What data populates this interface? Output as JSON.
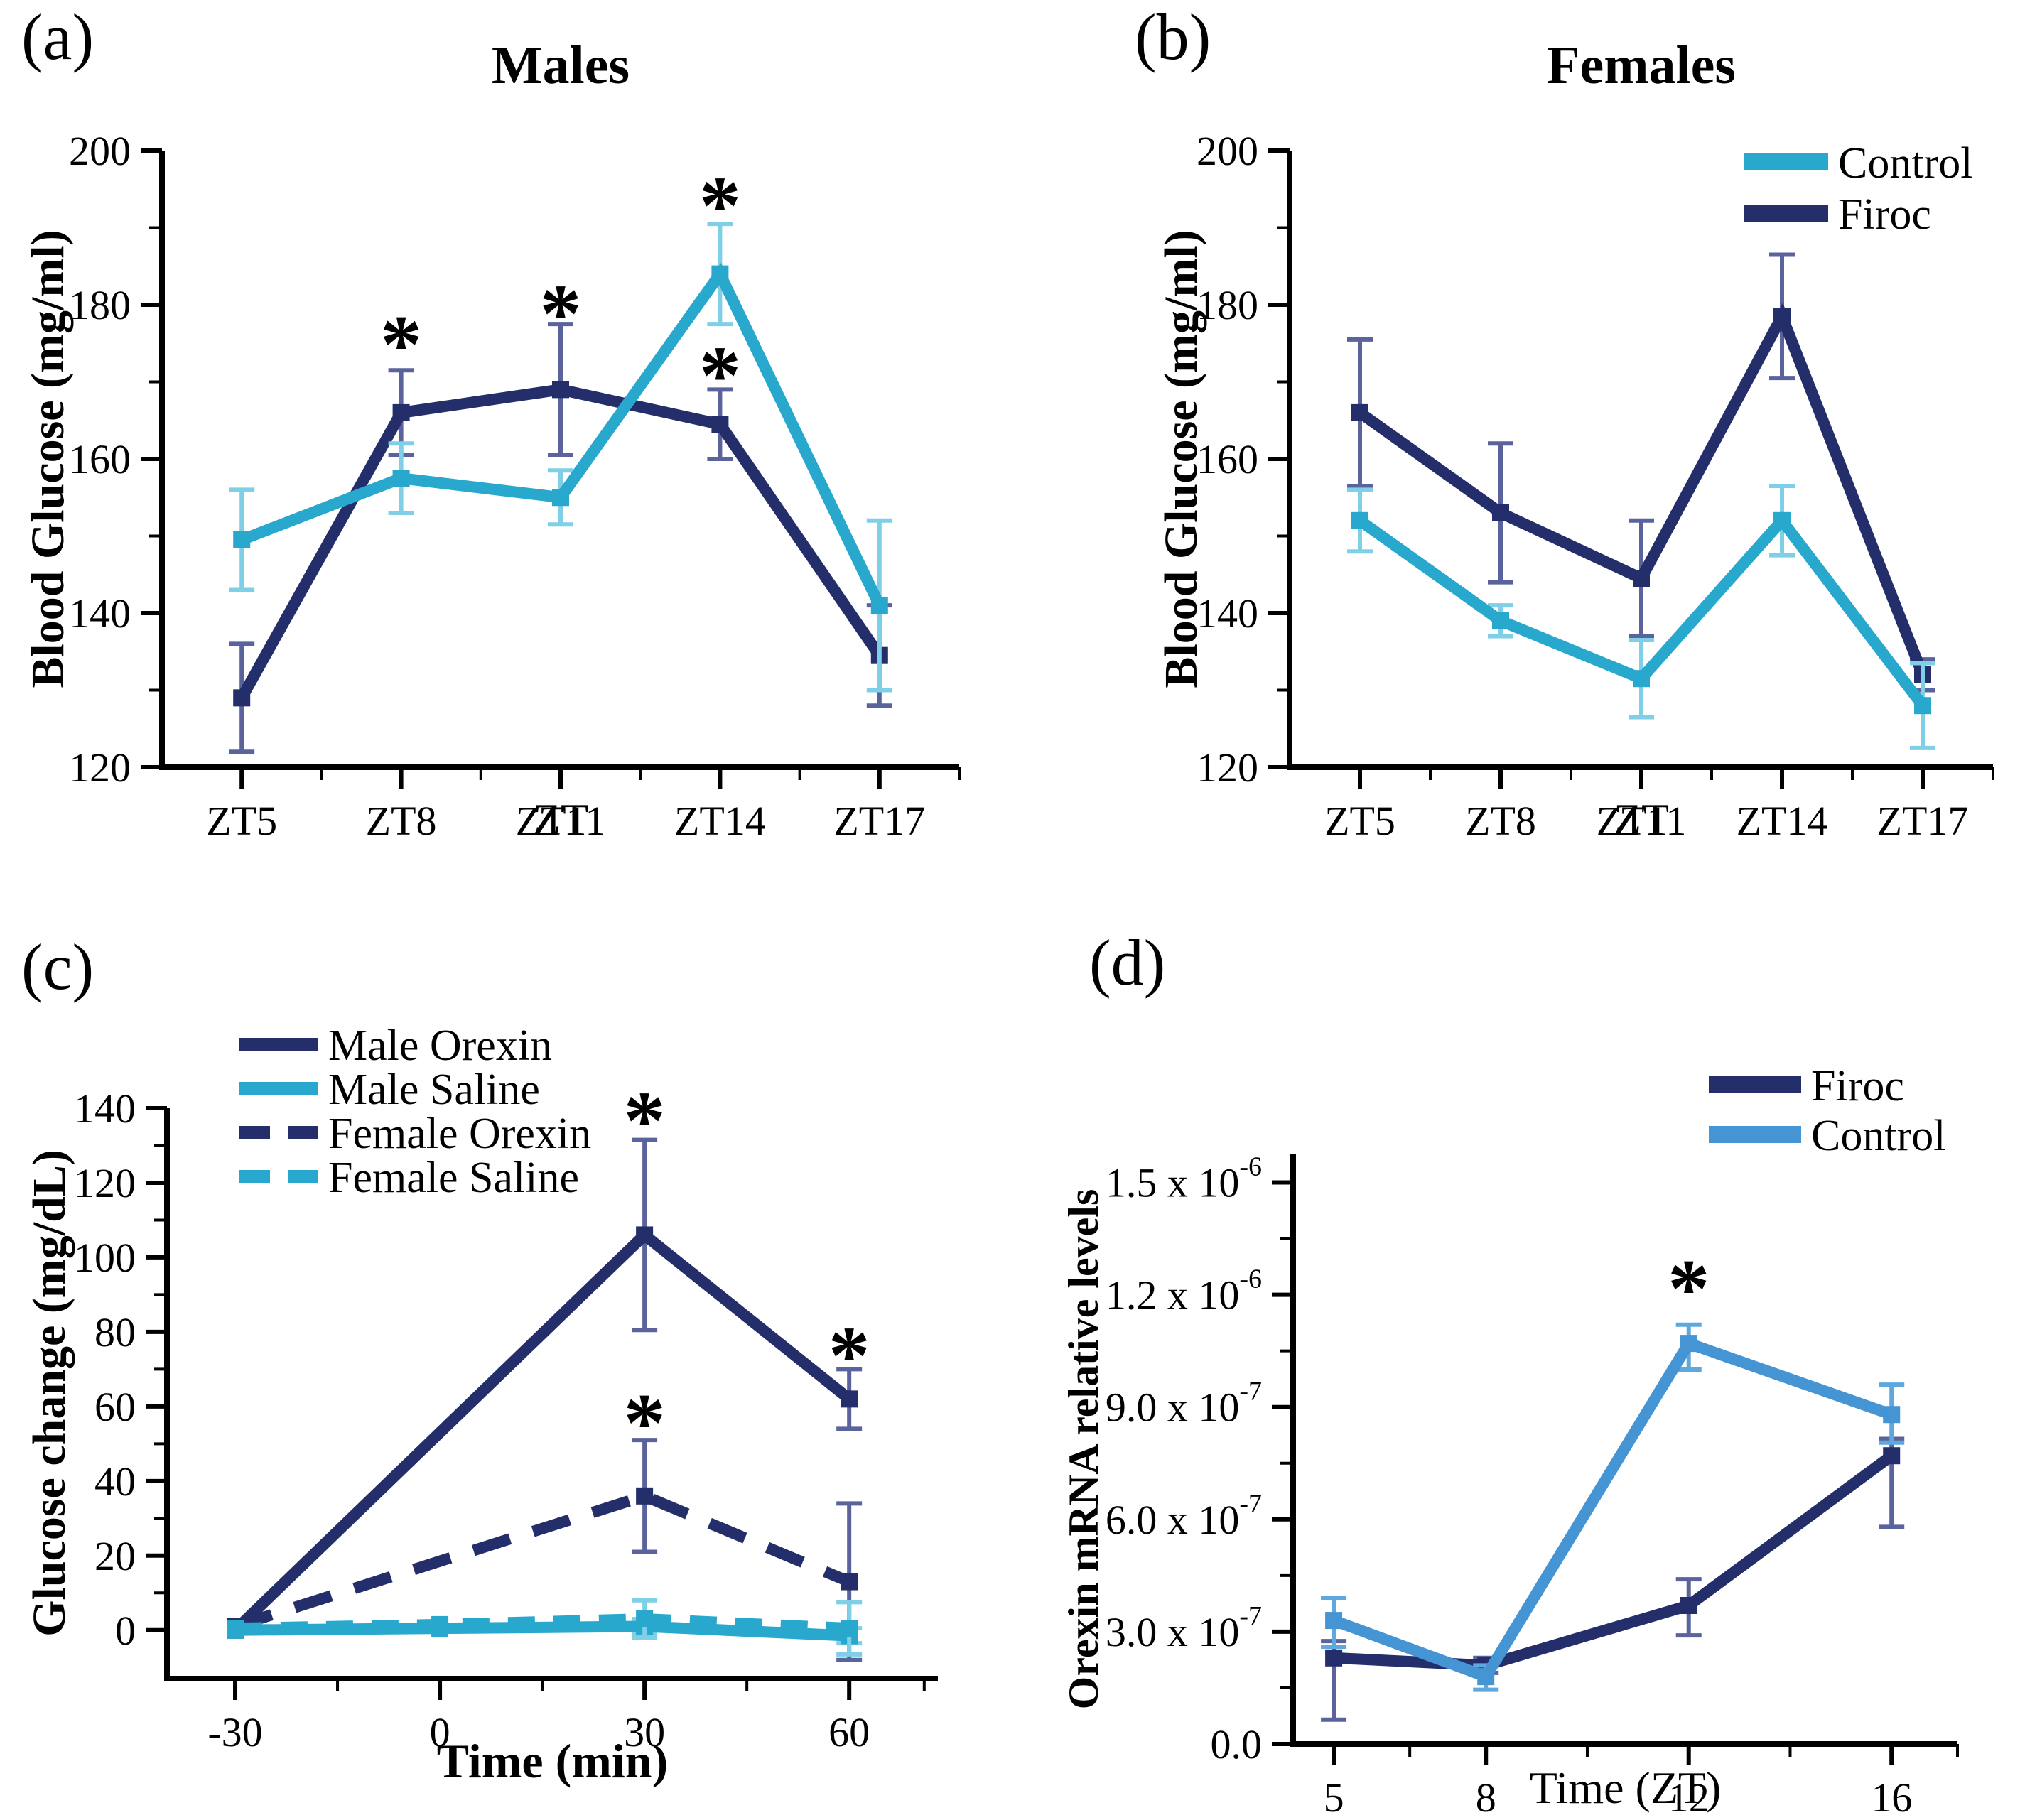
{
  "figure": {
    "background": "#ffffff",
    "sig_marker": "*"
  },
  "colors": {
    "navy": "#242E6B",
    "cyan": "#29A8CE",
    "sky_blue": "#4594D4",
    "navy_error": "#5A639B",
    "cyan_error": "#7FCFE6",
    "sky_error": "#5FA8DE",
    "axis": "#000000"
  },
  "chart_data": [
    {
      "panel_label": "(a)",
      "type": "line",
      "title": "Males",
      "xlabel": "ZT",
      "ylabel": "Blood Glucose (mg/ml)",
      "xlim": [
        3.5,
        18.5
      ],
      "ylim": [
        120,
        200
      ],
      "x_ticks": [
        {
          "v": 5,
          "label": "ZT5"
        },
        {
          "v": 8,
          "label": "ZT8"
        },
        {
          "v": 11,
          "label": "ZT11"
        },
        {
          "v": 14,
          "label": "ZT14"
        },
        {
          "v": 17,
          "label": "ZT17"
        }
      ],
      "x_minor": [
        6.5,
        9.5,
        12.5,
        15.5,
        18.5
      ],
      "y_ticks": [
        {
          "v": 120,
          "label": "120"
        },
        {
          "v": 140,
          "label": "140"
        },
        {
          "v": 160,
          "label": "160"
        },
        {
          "v": 180,
          "label": "180"
        },
        {
          "v": 200,
          "label": "200"
        }
      ],
      "y_minor": [
        130,
        150,
        170,
        190
      ],
      "series": [
        {
          "name": "Firoc",
          "color": "#242E6B",
          "err_color": "#5A639B",
          "dash": null,
          "x": [
            5,
            8,
            11,
            14,
            17
          ],
          "y": [
            129,
            166,
            169,
            164.5,
            134.5
          ],
          "err": [
            7,
            5.5,
            8.5,
            4.5,
            6.5
          ]
        },
        {
          "name": "Control",
          "color": "#29A8CE",
          "err_color": "#7FCFE6",
          "dash": null,
          "x": [
            5,
            8,
            11,
            14,
            17
          ],
          "y": [
            149.5,
            157.5,
            155,
            184,
            141
          ],
          "err": [
            6.5,
            4.5,
            3.5,
            6.5,
            11
          ]
        }
      ],
      "annotations": [
        {
          "x": 8,
          "y": 176,
          "text": "*"
        },
        {
          "x": 11,
          "y": 180,
          "text": "*"
        },
        {
          "x": 14,
          "y": 194,
          "text": "*"
        },
        {
          "x": 14,
          "y": 172,
          "text": "*"
        }
      ],
      "legend": null
    },
    {
      "panel_label": "(b)",
      "type": "line",
      "title": "Females",
      "xlabel": "ZT",
      "ylabel": "Blood Glucose (mg/ml)",
      "xlim": [
        3.5,
        18.5
      ],
      "ylim": [
        120,
        200
      ],
      "x_ticks": [
        {
          "v": 5,
          "label": "ZT5"
        },
        {
          "v": 8,
          "label": "ZT8"
        },
        {
          "v": 11,
          "label": "ZT11"
        },
        {
          "v": 14,
          "label": "ZT14"
        },
        {
          "v": 17,
          "label": "ZT17"
        }
      ],
      "x_minor": [
        6.5,
        9.5,
        12.5,
        15.5,
        18.5
      ],
      "y_ticks": [
        {
          "v": 120,
          "label": "120"
        },
        {
          "v": 140,
          "label": "140"
        },
        {
          "v": 160,
          "label": "160"
        },
        {
          "v": 180,
          "label": "180"
        },
        {
          "v": 200,
          "label": "200"
        }
      ],
      "y_minor": [
        130,
        150,
        170,
        190
      ],
      "series": [
        {
          "name": "Firoc",
          "color": "#242E6B",
          "err_color": "#5A639B",
          "dash": null,
          "x": [
            5,
            8,
            11,
            14,
            17
          ],
          "y": [
            166,
            153,
            144.5,
            178.5,
            132
          ],
          "err": [
            9.5,
            9,
            7.5,
            8,
            2
          ]
        },
        {
          "name": "Control",
          "color": "#29A8CE",
          "err_color": "#7FCFE6",
          "dash": null,
          "x": [
            5,
            8,
            11,
            14,
            17
          ],
          "y": [
            152,
            139,
            131.5,
            152,
            128
          ],
          "err": [
            4,
            2,
            5,
            4.5,
            5.5
          ]
        }
      ],
      "annotations": [],
      "legend": {
        "items": [
          {
            "label": "Control",
            "series": 1
          },
          {
            "label": "Firoc",
            "series": 0
          }
        ]
      }
    },
    {
      "panel_label": "(c)",
      "type": "line",
      "title": "",
      "xlabel": "Time (min)",
      "ylabel": "Glucose change (mg/dL)",
      "xlim": [
        -40,
        73
      ],
      "ylim": [
        -13,
        140
      ],
      "x_ticks": [
        {
          "v": -30,
          "label": "-30"
        },
        {
          "v": 0,
          "label": "0"
        },
        {
          "v": 30,
          "label": "30"
        },
        {
          "v": 60,
          "label": "60"
        }
      ],
      "x_minor": [
        -15,
        15,
        45,
        71
      ],
      "y_ticks": [
        {
          "v": 0,
          "label": "0"
        },
        {
          "v": 20,
          "label": "20"
        },
        {
          "v": 40,
          "label": "40"
        },
        {
          "v": 60,
          "label": "60"
        },
        {
          "v": 80,
          "label": "80"
        },
        {
          "v": 100,
          "label": "100"
        },
        {
          "v": 120,
          "label": "120"
        },
        {
          "v": 140,
          "label": "140"
        }
      ],
      "y_minor": [
        10,
        30,
        50,
        70,
        90,
        110,
        130
      ],
      "series": [
        {
          "name": "Male Orexin",
          "color": "#242E6B",
          "err_color": "#5A639B",
          "dash": null,
          "x": [
            -30,
            30,
            60
          ],
          "y": [
            0,
            106,
            62
          ],
          "err": [
            0,
            25.5,
            8
          ]
        },
        {
          "name": "Female Orexin",
          "color": "#242E6B",
          "err_color": "#5A639B",
          "dash": "54 34",
          "x": [
            -30,
            30,
            60
          ],
          "y": [
            1,
            36,
            13
          ],
          "err": [
            0,
            15,
            21
          ]
        },
        {
          "name": "Male Saline",
          "color": "#29A8CE",
          "err_color": "#7FCFE6",
          "dash": null,
          "x": [
            -30,
            0,
            30,
            60
          ],
          "y": [
            0,
            0.5,
            1,
            -1.5
          ],
          "err": [
            0,
            0,
            2,
            2
          ]
        },
        {
          "name": "Female Saline",
          "color": "#29A8CE",
          "err_color": "#7FCFE6",
          "dash": "38 26",
          "x": [
            -30,
            0,
            30,
            60
          ],
          "y": [
            0.5,
            1.5,
            3,
            0.5
          ],
          "err": [
            0,
            0,
            5,
            7
          ]
        }
      ],
      "annotations": [
        {
          "x": 30,
          "y": 139,
          "text": "*"
        },
        {
          "x": 30,
          "y": 58,
          "text": "*"
        },
        {
          "x": 60,
          "y": 76,
          "text": "*"
        }
      ],
      "legend": {
        "items": [
          {
            "label": "Male Orexin",
            "series": 0
          },
          {
            "label": "Male Saline",
            "series": 2
          },
          {
            "label": "Female Orexin",
            "series": 1
          },
          {
            "label": "Female Saline",
            "series": 3
          }
        ]
      }
    },
    {
      "panel_label": "(d)",
      "type": "line",
      "title": "",
      "xlabel": "Time  (ZT)",
      "ylabel": "Orexin mRNA relative levels",
      "xlim": [
        4.2,
        17.3
      ],
      "ylim": [
        0,
        1.575e-06
      ],
      "x_ticks": [
        {
          "v": 5,
          "label": "5"
        },
        {
          "v": 8,
          "label": "8"
        },
        {
          "v": 12,
          "label": "12"
        },
        {
          "v": 16,
          "label": "16"
        }
      ],
      "x_minor": [
        6.5,
        10,
        14,
        17.3
      ],
      "y_ticks": [
        {
          "v": 0,
          "label": "0.0"
        },
        {
          "v": 3e-07,
          "label": "3.0 x 10",
          "sup": "-7"
        },
        {
          "v": 6e-07,
          "label": "6.0 x 10",
          "sup": "-7"
        },
        {
          "v": 9e-07,
          "label": "9.0 x 10",
          "sup": "-7"
        },
        {
          "v": 1.2e-06,
          "label": "1.2 x 10",
          "sup": "-6"
        },
        {
          "v": 1.5e-06,
          "label": "1.5 x 10",
          "sup": "-6"
        }
      ],
      "y_minor": [
        1.5e-07,
        4.5e-07,
        7.5e-07,
        1.05e-06,
        1.35e-06
      ],
      "series": [
        {
          "name": "Firoc",
          "color": "#242E6B",
          "err_color": "#5A639B",
          "dash": null,
          "x": [
            5,
            8,
            12,
            16
          ],
          "y": [
            2.3e-07,
            2.1e-07,
            3.7e-07,
            7.7e-07
          ],
          "err": [
            [
              1.65e-07,
              4.5e-08
            ],
            [
              2e-08,
              2e-08
            ],
            [
              8e-08,
              7e-08
            ],
            [
              1.9e-07,
              4.5e-08
            ]
          ]
        },
        {
          "name": "Control",
          "color": "#4594D4",
          "err_color": "#5FA8DE",
          "dash": null,
          "x": [
            5,
            8,
            12,
            16
          ],
          "y": [
            3.3e-07,
            1.8e-07,
            1.07e-06,
            8.8e-07
          ],
          "err": [
            [
              7e-08,
              6e-08
            ],
            [
              3.5e-08,
              3e-08
            ],
            [
              7e-08,
              5e-08
            ],
            [
              7.5e-08,
              8e-08
            ]
          ]
        }
      ],
      "annotations": [
        {
          "x": 12,
          "y": 1.24e-06,
          "text": "*"
        }
      ],
      "legend": {
        "items": [
          {
            "label": "Firoc",
            "series": 0
          },
          {
            "label": "Control",
            "series": 1
          }
        ]
      }
    }
  ]
}
